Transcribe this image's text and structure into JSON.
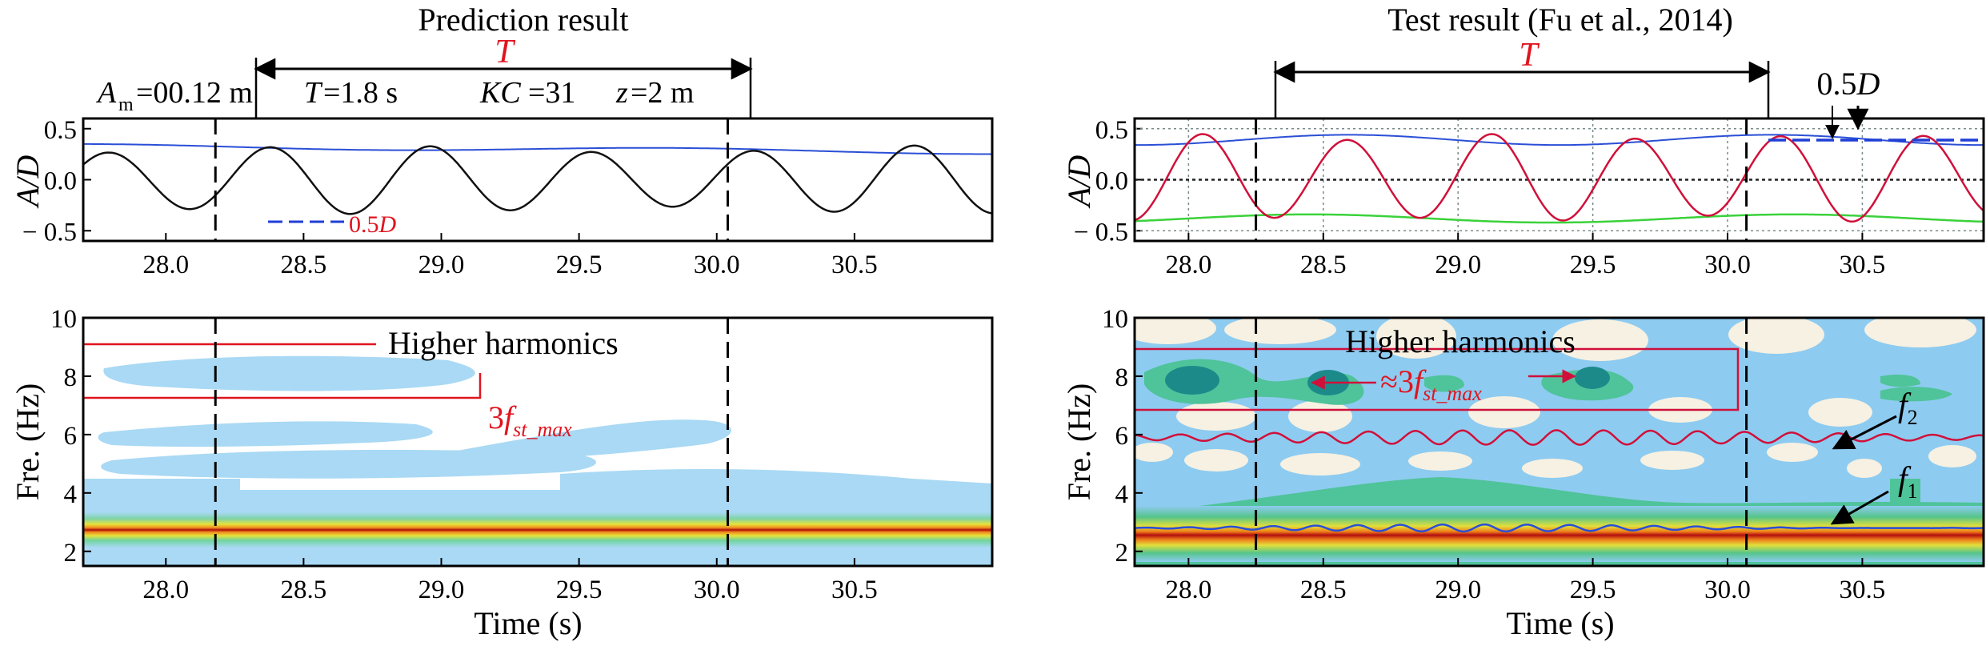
{
  "panels": {
    "left": {
      "title": "Prediction result",
      "period_symbol": "T",
      "params": {
        "am_symbol": "A",
        "am_sub": "m",
        "am_value": "=00.12 m",
        "T_symbol": "T",
        "T_value": "=1.8 s",
        "KC_symbol": "KC",
        "KC_value": "=31",
        "z_symbol": "z",
        "z_value": "=2 m"
      },
      "scale_label": "0.5",
      "scale_symbol": "D",
      "higher_harmonics": "Higher harmonics",
      "freq_label_main": "3",
      "freq_label_f": "f",
      "freq_label_sub": "st_max"
    },
    "right": {
      "title": "Test result (Fu et al., 2014)",
      "period_symbol": "T",
      "scale_label": "0.5",
      "scale_symbol": "D",
      "higher_harmonics": "Higher harmonics",
      "approx_main": "≈3",
      "approx_f": "f",
      "approx_sub": "st_max",
      "f2": "f",
      "f2_sub": "2",
      "f1": "f",
      "f1_sub": "1"
    }
  },
  "axes": {
    "ylabel_top": "A/D",
    "ylabel_bottom": "Fre. (Hz)",
    "xlabel": "Time (s)"
  },
  "colors": {
    "envelope": "#2a4fd6",
    "signal_pred": "#111111",
    "signal_test": "#d0103a",
    "lower_env": "#3bd23b",
    "freq_track": "#d0103a",
    "red_text": "#e0141e",
    "scale_blue": "#1f3fd6",
    "wt_bg_right": "#8ecbf0",
    "wt_light": "#a9d9f4"
  },
  "chart_data": [
    {
      "type": "line",
      "panel": "prediction-amplitude",
      "xlabel": "",
      "ylabel": "A/D",
      "xlim": [
        27.7,
        31.0
      ],
      "ylim": [
        -0.6,
        0.6
      ],
      "xticks": [
        28.0,
        28.5,
        29.0,
        29.5,
        30.0,
        30.5
      ],
      "xtick_labels": [
        "28.0",
        "28.5",
        "29.0",
        "29.5",
        "30.0",
        "30.5"
      ],
      "yticks": [
        0.5,
        0.0,
        -0.5
      ],
      "ytick_labels": [
        "0.5",
        "0.0",
        "− 0.5"
      ],
      "period_markers_x": [
        28.18,
        30.04
      ],
      "series": [
        {
          "kind": "signal",
          "amplitude": 0.3,
          "period": 0.585,
          "phase_zero_crossing": 28.23,
          "envelope_start": 0.33,
          "envelope_end": 0.27
        }
      ],
      "grid": false
    },
    {
      "type": "heatmap",
      "panel": "prediction-frequency",
      "xlabel": "Time (s)",
      "ylabel": "Fre. (Hz)",
      "xlim": [
        27.7,
        31.0
      ],
      "ylim": [
        1.5,
        10
      ],
      "xticks": [
        28.0,
        28.5,
        29.0,
        29.5,
        30.0,
        30.5
      ],
      "xtick_labels": [
        "28.0",
        "28.5",
        "29.0",
        "29.5",
        "30.0",
        "30.5"
      ],
      "yticks": [
        2,
        4,
        6,
        8,
        10
      ],
      "ytick_labels": [
        "2",
        "4",
        "6",
        "8",
        "10"
      ],
      "dominant_frequency": 2.7,
      "harmonic_band": [
        7.2,
        9.0
      ],
      "period_markers_x": [
        28.18,
        30.04
      ]
    },
    {
      "type": "line",
      "panel": "test-amplitude",
      "xlabel": "",
      "ylabel": "A/D",
      "xlim": [
        27.8,
        30.95
      ],
      "ylim": [
        -0.6,
        0.6
      ],
      "xticks": [
        28.0,
        28.5,
        29.0,
        29.5,
        30.0,
        30.5
      ],
      "xtick_labels": [
        "28.0",
        "28.5",
        "29.0",
        "29.5",
        "30.0",
        "30.5"
      ],
      "yticks": [
        0.5,
        0.0,
        -0.5
      ],
      "ytick_labels": [
        "0.5",
        "0.0",
        "− 0.5"
      ],
      "period_markers_x": [
        28.25,
        30.07
      ],
      "series": [
        {
          "kind": "signal",
          "amplitude": 0.4,
          "period": 0.535,
          "phase_zero_crossing": 27.92,
          "envelope_upper": 0.42,
          "envelope_lower": -0.38
        }
      ],
      "grid": true
    },
    {
      "type": "heatmap",
      "panel": "test-frequency",
      "xlabel": "Time (s)",
      "ylabel": "Fre. (Hz)",
      "xlim": [
        27.8,
        30.95
      ],
      "ylim": [
        1.5,
        10
      ],
      "xticks": [
        28.0,
        28.5,
        29.0,
        29.5,
        30.0,
        30.5
      ],
      "xtick_labels": [
        "28.0",
        "28.5",
        "29.0",
        "29.5",
        "30.0",
        "30.5"
      ],
      "yticks": [
        2,
        4,
        6,
        8,
        10
      ],
      "ytick_labels": [
        "2",
        "4",
        "6",
        "8",
        "10"
      ],
      "f1_frequency": 2.8,
      "f2_frequency": 5.9,
      "harmonic_box": [
        6.8,
        9.0
      ],
      "period_markers_x": [
        28.25,
        30.07
      ]
    }
  ]
}
